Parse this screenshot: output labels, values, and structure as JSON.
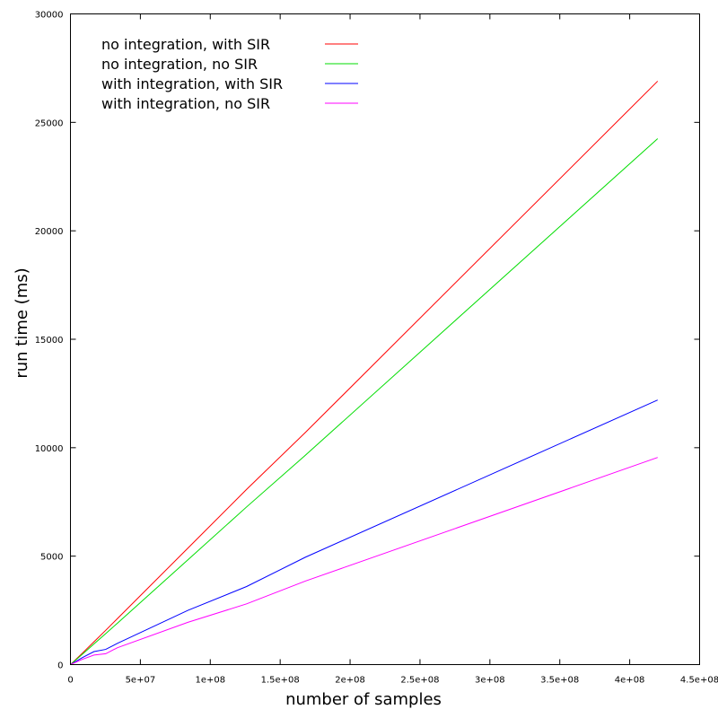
{
  "chart_data": {
    "type": "line",
    "title": "",
    "xlabel": "number of samples",
    "ylabel": "run time (ms)",
    "xlim": [
      0,
      450000000
    ],
    "ylim": [
      0,
      30000
    ],
    "x_tick_values": [
      0,
      50000000,
      100000000,
      150000000,
      200000000,
      250000000,
      300000000,
      350000000,
      400000000,
      450000000
    ],
    "x_tick_labels": [
      "0",
      "5e+07",
      "1e+08",
      "1.5e+08",
      "2e+08",
      "2.5e+08",
      "3e+08",
      "3.5e+08",
      "4e+08",
      "4.5e+08"
    ],
    "y_tick_values": [
      0,
      5000,
      10000,
      15000,
      20000,
      25000,
      30000
    ],
    "y_tick_labels": [
      "0",
      "5000",
      "10000",
      "15000",
      "20000",
      "25000",
      "30000"
    ],
    "grid": false,
    "legend_position": "top-left",
    "series": [
      {
        "name": "no integration, with SIR",
        "color": "#ff0000",
        "x": [
          0,
          8400000,
          16800000,
          25200000,
          33600000,
          84000000,
          126000000,
          168000000,
          420000000
        ],
        "y": [
          0,
          520,
          1050,
          1580,
          2120,
          5370,
          8080,
          10700,
          26900
        ]
      },
      {
        "name": "no integration, no SIR",
        "color": "#00dd00",
        "x": [
          0,
          8400000,
          16800000,
          25200000,
          33600000,
          84000000,
          126000000,
          168000000,
          420000000
        ],
        "y": [
          0,
          470,
          950,
          1430,
          1910,
          4830,
          7270,
          9650,
          24250
        ]
      },
      {
        "name": "with integration, with SIR",
        "color": "#0000ff",
        "x": [
          0,
          8400000,
          16800000,
          25200000,
          33600000,
          84000000,
          126000000,
          168000000,
          420000000
        ],
        "y": [
          0,
          320,
          600,
          700,
          980,
          2500,
          3600,
          4950,
          12200
        ]
      },
      {
        "name": "with integration, no SIR",
        "color": "#ff00ff",
        "x": [
          0,
          8400000,
          16800000,
          25200000,
          33600000,
          84000000,
          126000000,
          168000000,
          420000000
        ],
        "y": [
          0,
          240,
          440,
          500,
          780,
          1950,
          2800,
          3850,
          9550
        ]
      }
    ]
  }
}
